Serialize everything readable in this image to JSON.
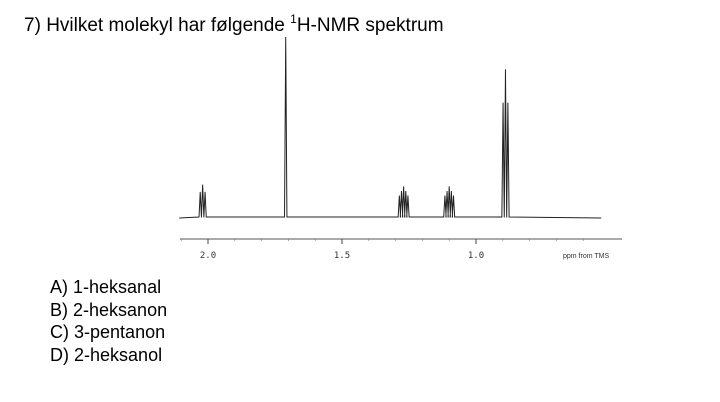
{
  "question": {
    "number": "7)",
    "text_before": "Hvilket molekyl har følgende",
    "superscript": "1",
    "text_after": "H-NMR spektrum"
  },
  "chart_data": {
    "type": "line",
    "title": "",
    "xlabel": "ppm from TMS",
    "x_reversed": true,
    "xlim": [
      2.1,
      0.6
    ],
    "ticks": [
      {
        "value": 2.0,
        "label": "2.0"
      },
      {
        "value": 1.5,
        "label": "1.5"
      },
      {
        "value": 1.0,
        "label": "1.0"
      }
    ],
    "peaks": [
      {
        "center": 2.02,
        "height": 0.18,
        "lines": [
          -0.009,
          0,
          0.009
        ]
      },
      {
        "center": 1.71,
        "height": 1.0,
        "lines": [
          0
        ]
      },
      {
        "center": 1.27,
        "height": 0.17,
        "lines": [
          -0.016,
          -0.008,
          0,
          0.008,
          0.016
        ]
      },
      {
        "center": 1.1,
        "height": 0.17,
        "lines": [
          -0.016,
          -0.008,
          0,
          0.008,
          0.016
        ]
      },
      {
        "center": 0.89,
        "height": 0.82,
        "lines": [
          -0.009,
          0,
          0.009
        ]
      }
    ]
  },
  "options": [
    {
      "letter": "A)",
      "text": "1-heksanal"
    },
    {
      "letter": "B)",
      "text": "2-heksanon"
    },
    {
      "letter": "C)",
      "text": "3-pentanon"
    },
    {
      "letter": "D)",
      "text": "2-heksanol"
    }
  ]
}
